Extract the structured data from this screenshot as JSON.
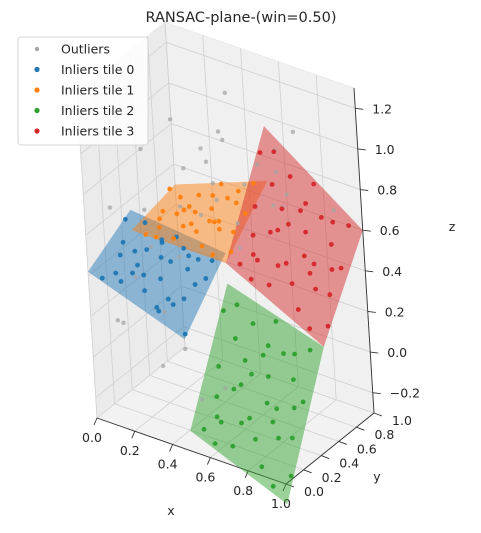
{
  "chart_data": {
    "type": "scatter",
    "projection": "3d",
    "title": "RANSAC-plane-(win=0.50)",
    "xlabel": "x",
    "ylabel": "y",
    "zlabel": "z",
    "xlim": [
      0,
      1
    ],
    "ylim": [
      0,
      1
    ],
    "zlim": [
      -0.3,
      1.3
    ],
    "x_ticks": [
      "0.0",
      "0.2",
      "0.4",
      "0.6",
      "0.8",
      "1.0"
    ],
    "y_ticks": [
      "0.0",
      "0.2",
      "0.4",
      "0.6",
      "0.8",
      "1.0"
    ],
    "z_ticks": [
      "−0.2",
      "0.0",
      "0.2",
      "0.4",
      "0.6",
      "0.8",
      "1.0",
      "1.2"
    ],
    "grid": true,
    "legend_position": "upper-left",
    "legend": [
      "Outliers",
      "Inliers tile 0",
      "Inliers tile 1",
      "Inliers tile 2",
      "Inliers tile 3"
    ],
    "series": [
      {
        "name": "Outliers",
        "color": "#a6a6a6",
        "points": [
          [
            0.08,
            0.12,
            0.72
          ],
          [
            0.15,
            0.35,
            0.95
          ],
          [
            0.22,
            0.55,
            1.05
          ],
          [
            0.3,
            0.7,
            0.88
          ],
          [
            0.35,
            0.9,
            1.1
          ],
          [
            0.12,
            0.8,
            0.5
          ],
          [
            0.05,
            0.6,
            0.35
          ],
          [
            0.4,
            0.2,
            0.1
          ],
          [
            0.5,
            0.15,
            -0.1
          ],
          [
            0.6,
            0.3,
            1.2
          ],
          [
            0.7,
            0.5,
            1.0
          ],
          [
            0.65,
            0.8,
            0.95
          ],
          [
            0.8,
            0.6,
            0.85
          ],
          [
            0.9,
            0.9,
            0.7
          ],
          [
            0.25,
            0.25,
            -0.05
          ],
          [
            0.45,
            0.45,
            0.95
          ],
          [
            0.55,
            0.65,
            0.8
          ],
          [
            0.18,
            0.15,
            0.4
          ],
          [
            0.35,
            0.1,
            0.3
          ],
          [
            0.75,
            0.15,
            0.85
          ],
          [
            0.85,
            0.35,
            0.9
          ],
          [
            0.95,
            0.2,
            1.15
          ],
          [
            0.1,
            0.45,
            0.6
          ],
          [
            0.28,
            0.85,
            0.65
          ],
          [
            0.42,
            0.6,
            0.7
          ],
          [
            0.6,
            0.95,
            0.6
          ],
          [
            0.02,
            0.25,
            0.1
          ],
          [
            0.48,
            0.3,
            0.75
          ],
          [
            0.58,
            0.5,
            0.55
          ],
          [
            0.3,
            0.4,
            0.45
          ],
          [
            0.2,
            0.7,
            0.75
          ],
          [
            0.68,
            0.05,
            0.05
          ],
          [
            0.78,
            0.75,
            1.1
          ],
          [
            0.38,
            0.78,
            0.92
          ],
          [
            0.15,
            0.05,
            0.2
          ]
        ]
      },
      {
        "name": "Inliers tile 0",
        "color": "#1f77b4",
        "plane": "t0",
        "points": [
          [
            0.05,
            0.05
          ],
          [
            0.1,
            0.1
          ],
          [
            0.15,
            0.05
          ],
          [
            0.2,
            0.2
          ],
          [
            0.25,
            0.1
          ],
          [
            0.3,
            0.3
          ],
          [
            0.35,
            0.15
          ],
          [
            0.4,
            0.4
          ],
          [
            0.45,
            0.25
          ],
          [
            0.05,
            0.3
          ],
          [
            0.1,
            0.45
          ],
          [
            0.15,
            0.35
          ],
          [
            0.2,
            0.42
          ],
          [
            0.25,
            0.3
          ],
          [
            0.3,
            0.45
          ],
          [
            0.35,
            0.4
          ],
          [
            0.4,
            0.1
          ],
          [
            0.45,
            0.45
          ],
          [
            0.08,
            0.2
          ],
          [
            0.18,
            0.12
          ],
          [
            0.28,
            0.22
          ],
          [
            0.38,
            0.32
          ],
          [
            0.48,
            0.05
          ],
          [
            0.12,
            0.28
          ],
          [
            0.22,
            0.38
          ],
          [
            0.32,
            0.08
          ],
          [
            0.42,
            0.18
          ],
          [
            0.02,
            0.4
          ],
          [
            0.46,
            0.35
          ],
          [
            0.26,
            0.46
          ],
          [
            0.36,
            0.02
          ],
          [
            0.16,
            0.22
          ]
        ]
      },
      {
        "name": "Inliers tile 1",
        "color": "#ff7f0e",
        "plane": "t1",
        "points": [
          [
            0.05,
            0.55
          ],
          [
            0.1,
            0.6
          ],
          [
            0.15,
            0.7
          ],
          [
            0.2,
            0.8
          ],
          [
            0.25,
            0.9
          ],
          [
            0.3,
            0.6
          ],
          [
            0.35,
            0.75
          ],
          [
            0.4,
            0.85
          ],
          [
            0.45,
            0.95
          ],
          [
            0.05,
            0.75
          ],
          [
            0.1,
            0.85
          ],
          [
            0.15,
            0.95
          ],
          [
            0.2,
            0.55
          ],
          [
            0.25,
            0.65
          ],
          [
            0.3,
            0.75
          ],
          [
            0.35,
            0.55
          ],
          [
            0.4,
            0.65
          ],
          [
            0.45,
            0.7
          ],
          [
            0.08,
            0.65
          ],
          [
            0.18,
            0.72
          ],
          [
            0.28,
            0.82
          ],
          [
            0.38,
            0.92
          ],
          [
            0.48,
            0.6
          ],
          [
            0.12,
            0.52
          ],
          [
            0.22,
            0.62
          ],
          [
            0.32,
            0.92
          ],
          [
            0.42,
            0.52
          ],
          [
            0.02,
            0.9
          ],
          [
            0.46,
            0.82
          ],
          [
            0.26,
            0.98
          ],
          [
            0.36,
            0.68
          ],
          [
            0.16,
            0.82
          ]
        ]
      },
      {
        "name": "Inliers tile 2",
        "color": "#2ca02c",
        "plane": "t2",
        "points": [
          [
            0.55,
            0.05
          ],
          [
            0.6,
            0.1
          ],
          [
            0.65,
            0.2
          ],
          [
            0.7,
            0.3
          ],
          [
            0.75,
            0.4
          ],
          [
            0.8,
            0.1
          ],
          [
            0.85,
            0.25
          ],
          [
            0.9,
            0.35
          ],
          [
            0.95,
            0.45
          ],
          [
            0.55,
            0.25
          ],
          [
            0.6,
            0.35
          ],
          [
            0.65,
            0.45
          ],
          [
            0.7,
            0.05
          ],
          [
            0.75,
            0.15
          ],
          [
            0.8,
            0.25
          ],
          [
            0.85,
            0.05
          ],
          [
            0.9,
            0.15
          ],
          [
            0.95,
            0.2
          ],
          [
            0.58,
            0.15
          ],
          [
            0.68,
            0.22
          ],
          [
            0.78,
            0.32
          ],
          [
            0.88,
            0.42
          ],
          [
            0.98,
            0.1
          ],
          [
            0.62,
            0.02
          ],
          [
            0.72,
            0.12
          ],
          [
            0.82,
            0.42
          ],
          [
            0.92,
            0.02
          ],
          [
            0.52,
            0.4
          ],
          [
            0.96,
            0.32
          ],
          [
            0.76,
            0.48
          ],
          [
            0.86,
            0.18
          ],
          [
            0.66,
            0.32
          ],
          [
            0.57,
            0.45
          ],
          [
            0.73,
            0.38
          ],
          [
            0.93,
            0.28
          ],
          [
            0.63,
            0.08
          ]
        ]
      },
      {
        "name": "Inliers tile 3",
        "color": "#d62728",
        "plane": "t3",
        "points": [
          [
            0.55,
            0.55
          ],
          [
            0.6,
            0.6
          ],
          [
            0.65,
            0.7
          ],
          [
            0.7,
            0.8
          ],
          [
            0.75,
            0.9
          ],
          [
            0.8,
            0.6
          ],
          [
            0.85,
            0.75
          ],
          [
            0.9,
            0.85
          ],
          [
            0.95,
            0.95
          ],
          [
            0.55,
            0.75
          ],
          [
            0.6,
            0.85
          ],
          [
            0.65,
            0.95
          ],
          [
            0.7,
            0.55
          ],
          [
            0.75,
            0.65
          ],
          [
            0.8,
            0.75
          ],
          [
            0.85,
            0.55
          ],
          [
            0.9,
            0.65
          ],
          [
            0.95,
            0.7
          ],
          [
            0.58,
            0.65
          ],
          [
            0.68,
            0.72
          ],
          [
            0.78,
            0.82
          ],
          [
            0.88,
            0.92
          ],
          [
            0.98,
            0.6
          ],
          [
            0.62,
            0.52
          ],
          [
            0.72,
            0.62
          ],
          [
            0.82,
            0.92
          ],
          [
            0.92,
            0.52
          ],
          [
            0.52,
            0.9
          ],
          [
            0.96,
            0.82
          ],
          [
            0.76,
            0.98
          ],
          [
            0.86,
            0.68
          ],
          [
            0.66,
            0.82
          ],
          [
            0.57,
            0.95
          ],
          [
            0.73,
            0.88
          ],
          [
            0.93,
            0.78
          ],
          [
            0.63,
            0.58
          ]
        ]
      }
    ],
    "planes": [
      {
        "id": "t0",
        "color": "#1f77b4",
        "corners": [
          [
            0,
            0,
            0.42
          ],
          [
            0.5,
            0,
            0.25
          ],
          [
            0.5,
            0.5,
            0.5
          ],
          [
            0,
            0.5,
            0.55
          ]
        ]
      },
      {
        "id": "t1",
        "color": "#ff7f0e",
        "corners": [
          [
            0,
            0.5,
            0.45
          ],
          [
            0.5,
            0.5,
            0.45
          ],
          [
            0.5,
            1,
            0.68
          ],
          [
            0,
            1,
            0.5
          ]
        ]
      },
      {
        "id": "t2",
        "color": "#2ca02c",
        "corners": [
          [
            0.5,
            0,
            -0.2
          ],
          [
            1,
            0,
            -0.4
          ],
          [
            1,
            0.5,
            0.2
          ],
          [
            0.5,
            0.5,
            0.35
          ]
        ]
      },
      {
        "id": "t3",
        "color": "#d62728",
        "corners": [
          [
            0.5,
            0.5,
            0.45
          ],
          [
            1,
            0.5,
            0.2
          ],
          [
            1,
            1,
            0.6
          ],
          [
            0.5,
            1,
            0.95
          ]
        ]
      }
    ]
  }
}
